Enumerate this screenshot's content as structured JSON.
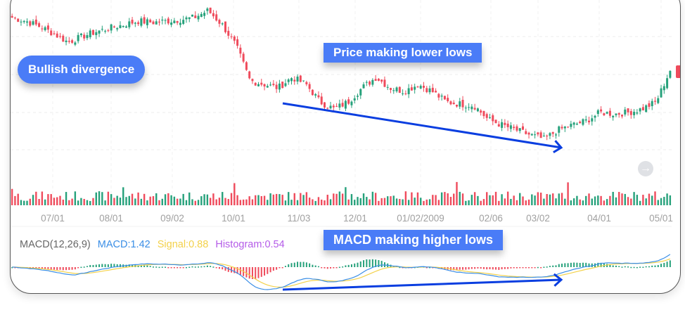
{
  "annotations": {
    "bullish_divergence": "Bullish divergence",
    "price_lower_lows": "Price making lower lows",
    "macd_higher_lows": "MACD making higher lows"
  },
  "legend": {
    "name": "MACD(12,26,9)",
    "macd": "MACD:1.42",
    "signal": "Signal:0.88",
    "histogram": "Histogram:0.54"
  },
  "colors": {
    "up": "#26a17b",
    "down": "#ef4b5c",
    "macd": "#3a8ee6",
    "signal": "#f3d14a",
    "histogram_label": "#b45be8",
    "annotation": "#4a7cf7",
    "arrow": "#0a3ee0"
  },
  "chart_data": {
    "type": "candlestick",
    "title": "",
    "x_ticks": [
      "07/01",
      "08/01",
      "09/02",
      "10/01",
      "11/03",
      "12/01",
      "01/02/2009",
      "02/06",
      "03/02",
      "04/01",
      "05/01"
    ],
    "close_path_relative": [
      97.5,
      95,
      91,
      86,
      80,
      84,
      87.5,
      90,
      92.5,
      95,
      94,
      95,
      96,
      97.5,
      102.5,
      92.5,
      77.5,
      52.5,
      50,
      47.5,
      55,
      50,
      37.5,
      32.5,
      37.5,
      47.5,
      55,
      47.5,
      45,
      50,
      45,
      37.5,
      36,
      35,
      25,
      21,
      17.5,
      14,
      11,
      17.5,
      21,
      24,
      30,
      29,
      30,
      32.5,
      37.5,
      60
    ],
    "indicator": {
      "name": "MACD",
      "params": [
        12,
        26,
        9
      ],
      "macd": 1.42,
      "signal": 0.88,
      "histogram": 0.54
    },
    "grid": true
  }
}
